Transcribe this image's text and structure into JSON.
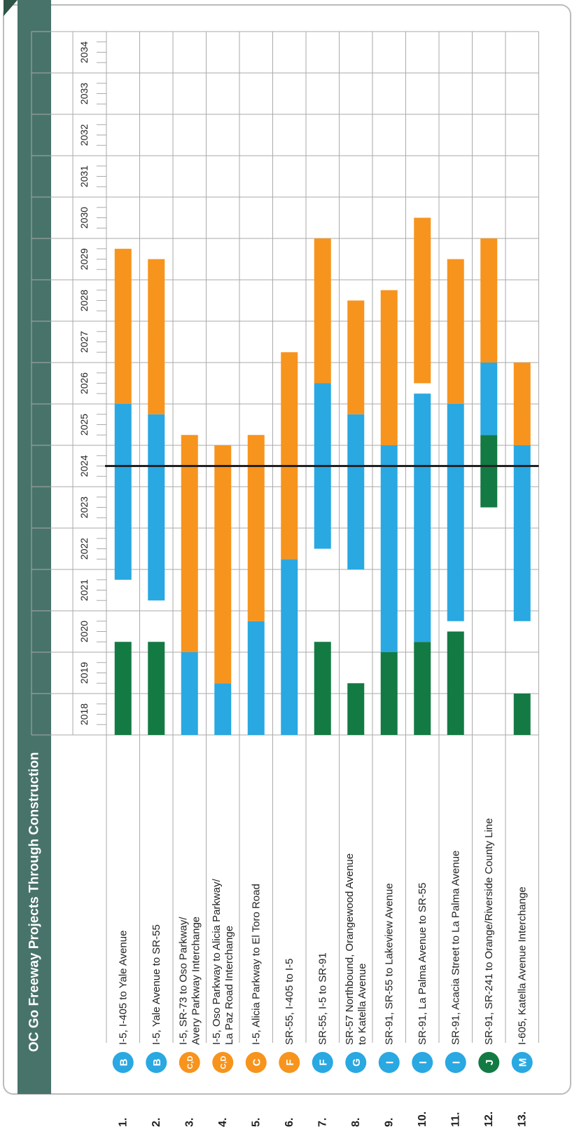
{
  "title": "OC Go Freeway Projects Through Construction",
  "timeline": {
    "years": [
      2018,
      2019,
      2020,
      2021,
      2022,
      2023,
      2024,
      2025,
      2026,
      2027,
      2028,
      2029,
      2030,
      2031,
      2032,
      2033,
      2034
    ],
    "xlim": [
      2018,
      2035
    ],
    "marker": 2024.5
  },
  "phase_colors": [
    "#137a43",
    "#29a8e2",
    "#f7941d"
  ],
  "rows": [
    {
      "number": "1.",
      "badge": "B",
      "badge_color": "#29a8e2",
      "label": [
        "I-5, I-405 to Yale Avenue"
      ],
      "segments": [
        {
          "phase": 0,
          "start": 2018,
          "end": 2020.25
        },
        {
          "phase": 1,
          "start": 2021.75,
          "end": 2026
        },
        {
          "phase": 2,
          "start": 2026,
          "end": 2029.75
        }
      ]
    },
    {
      "number": "2.",
      "badge": "B",
      "badge_color": "#29a8e2",
      "label": [
        "I-5, Yale Avenue to SR-55"
      ],
      "segments": [
        {
          "phase": 0,
          "start": 2018,
          "end": 2020.25
        },
        {
          "phase": 1,
          "start": 2021.25,
          "end": 2025.75
        },
        {
          "phase": 2,
          "start": 2025.75,
          "end": 2029.5
        }
      ]
    },
    {
      "number": "3.",
      "badge": "C,D",
      "badge_color": "#f7941d",
      "label": [
        "I-5, SR-73 to Oso Parkway/",
        "Avery Parkway Interchange"
      ],
      "segments": [
        {
          "phase": 1,
          "start": 2018,
          "end": 2020
        },
        {
          "phase": 2,
          "start": 2020,
          "end": 2025.25
        }
      ]
    },
    {
      "number": "4.",
      "badge": "C,D",
      "badge_color": "#f7941d",
      "label": [
        "I-5, Oso Parkway to Alicia Parkway/",
        "La Paz Road Interchange"
      ],
      "segments": [
        {
          "phase": 1,
          "start": 2018,
          "end": 2019.25
        },
        {
          "phase": 2,
          "start": 2019.25,
          "end": 2025
        }
      ]
    },
    {
      "number": "5.",
      "badge": "C",
      "badge_color": "#f7941d",
      "label": [
        "I-5, Alicia Parkway to El Toro Road"
      ],
      "segments": [
        {
          "phase": 1,
          "start": 2018,
          "end": 2020.75
        },
        {
          "phase": 2,
          "start": 2020.75,
          "end": 2025.25
        }
      ]
    },
    {
      "number": "6.",
      "badge": "F",
      "badge_color": "#f7941d",
      "label": [
        "SR-55, I-405 to I-5"
      ],
      "segments": [
        {
          "phase": 1,
          "start": 2018,
          "end": 2022.25
        },
        {
          "phase": 2,
          "start": 2022.25,
          "end": 2027.25
        }
      ]
    },
    {
      "number": "7.",
      "badge": "F",
      "badge_color": "#29a8e2",
      "label": [
        "SR-55, I-5 to SR-91"
      ],
      "segments": [
        {
          "phase": 0,
          "start": 2018,
          "end": 2020.25
        },
        {
          "phase": 1,
          "start": 2022.5,
          "end": 2026.5
        },
        {
          "phase": 2,
          "start": 2026.5,
          "end": 2030
        }
      ]
    },
    {
      "number": "8.",
      "badge": "G",
      "badge_color": "#29a8e2",
      "label": [
        "SR-57 Northbound, Orangewood Avenue",
        "to Katella Avenue"
      ],
      "segments": [
        {
          "phase": 0,
          "start": 2018,
          "end": 2019.25
        },
        {
          "phase": 1,
          "start": 2022,
          "end": 2025.75
        },
        {
          "phase": 2,
          "start": 2025.75,
          "end": 2028.5
        }
      ]
    },
    {
      "number": "9.",
      "badge": "I",
      "badge_color": "#29a8e2",
      "label": [
        "SR-91, SR-55 to Lakeview Avenue"
      ],
      "segments": [
        {
          "phase": 0,
          "start": 2018,
          "end": 2020
        },
        {
          "phase": 1,
          "start": 2020,
          "end": 2025
        },
        {
          "phase": 2,
          "start": 2025,
          "end": 2028.75
        }
      ]
    },
    {
      "number": "10.",
      "badge": "I",
      "badge_color": "#29a8e2",
      "label": [
        "SR-91, La Palma Avenue to SR-55"
      ],
      "segments": [
        {
          "phase": 0,
          "start": 2018,
          "end": 2020.25
        },
        {
          "phase": 1,
          "start": 2020.25,
          "end": 2026.25
        },
        {
          "phase": 2,
          "start": 2026.5,
          "end": 2030.5
        }
      ]
    },
    {
      "number": "11.",
      "badge": "I",
      "badge_color": "#29a8e2",
      "label": [
        "SR-91, Acacia Street to La Palma Avenue"
      ],
      "segments": [
        {
          "phase": 0,
          "start": 2018,
          "end": 2020.5
        },
        {
          "phase": 1,
          "start": 2020.75,
          "end": 2026
        },
        {
          "phase": 2,
          "start": 2026,
          "end": 2029.5
        }
      ]
    },
    {
      "number": "12.",
      "badge": "J",
      "badge_color": "#137a43",
      "label": [
        "SR-91, SR-241 to Orange/Riverside County Line"
      ],
      "segments": [
        {
          "phase": 0,
          "start": 2023.5,
          "end": 2025.25
        },
        {
          "phase": 1,
          "start": 2025.25,
          "end": 2027
        },
        {
          "phase": 2,
          "start": 2027,
          "end": 2030
        }
      ]
    },
    {
      "number": "13.",
      "badge": "M",
      "badge_color": "#29a8e2",
      "label": [
        "I-605, Katella Avenue Interchange"
      ],
      "segments": [
        {
          "phase": 0,
          "start": 2018,
          "end": 2019
        },
        {
          "phase": 1,
          "start": 2020.75,
          "end": 2025
        },
        {
          "phase": 2,
          "start": 2025,
          "end": 2027
        }
      ]
    }
  ]
}
